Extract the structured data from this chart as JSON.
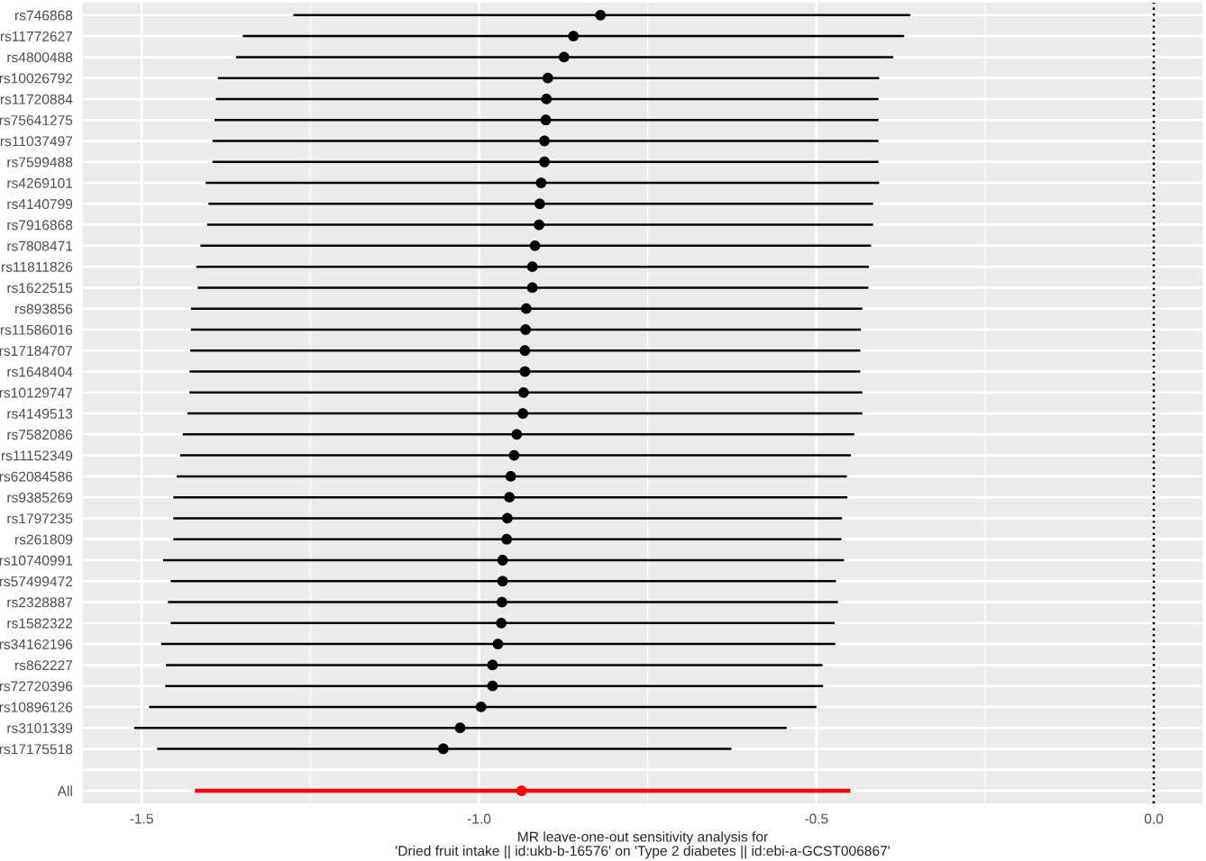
{
  "chart_data": {
    "type": "scatter",
    "orientation": "horizontal",
    "xlabel": "MR leave-one-out sensitivity analysis for\n'Dried fruit intake || id:ukb-b-16576' on 'Type 2 diabetes || id:ebi-a-GCST006867'",
    "categories": [
      "rs746868",
      "rs11772627",
      "rs4800488",
      "rs10026792",
      "rs11720884",
      "rs75641275",
      "rs11037497",
      "rs7599488",
      "rs4269101",
      "rs4140799",
      "rs7916868",
      "rs7808471",
      "rs11811826",
      "rs1622515",
      "rs893856",
      "rs11586016",
      "rs17184707",
      "rs1648404",
      "rs10129747",
      "rs4149513",
      "rs7582086",
      "rs11152349",
      "rs62084586",
      "rs9385269",
      "rs1797235",
      "rs261809",
      "rs10740991",
      "rs57499472",
      "rs2328887",
      "rs1582322",
      "rs34162196",
      "rs862227",
      "rs72720396",
      "rs10896126",
      "rs3101339",
      "rs17175518",
      null,
      "All"
    ],
    "series": [
      {
        "color": "#000000",
        "values": [
          -0.82,
          -0.86,
          -0.874,
          -0.898,
          -0.9,
          -0.901,
          -0.903,
          -0.903,
          -0.908,
          -0.91,
          -0.911,
          -0.917,
          -0.921,
          -0.921,
          -0.93,
          -0.931,
          -0.932,
          -0.932,
          -0.934,
          -0.935,
          -0.944,
          -0.948,
          -0.953,
          -0.955,
          -0.958,
          -0.959,
          -0.965,
          -0.965,
          -0.966,
          -0.967,
          -0.972,
          -0.98,
          -0.98,
          -0.997,
          -1.028,
          -1.053,
          null,
          null
        ],
        "errors": [
          [
            -1.275,
            -0.361
          ],
          [
            -1.35,
            -0.37
          ],
          [
            -1.36,
            -0.386
          ],
          [
            -1.387,
            -0.407
          ],
          [
            -1.39,
            -0.408
          ],
          [
            -1.392,
            -0.408
          ],
          [
            -1.395,
            -0.408
          ],
          [
            -1.395,
            -0.408
          ],
          [
            -1.405,
            -0.407
          ],
          [
            -1.401,
            -0.416
          ],
          [
            -1.403,
            -0.416
          ],
          [
            -1.413,
            -0.419
          ],
          [
            -1.419,
            -0.422
          ],
          [
            -1.417,
            -0.423
          ],
          [
            -1.427,
            -0.432
          ],
          [
            -1.427,
            -0.434
          ],
          [
            -1.428,
            -0.435
          ],
          [
            -1.429,
            -0.435
          ],
          [
            -1.429,
            -0.432
          ],
          [
            -1.432,
            -0.432
          ],
          [
            -1.439,
            -0.444
          ],
          [
            -1.443,
            -0.449
          ],
          [
            -1.448,
            -0.455
          ],
          [
            -1.453,
            -0.454
          ],
          [
            -1.453,
            -0.462
          ],
          [
            -1.453,
            -0.463
          ],
          [
            -1.468,
            -0.459
          ],
          [
            -1.457,
            -0.471
          ],
          [
            -1.461,
            -0.468
          ],
          [
            -1.457,
            -0.473
          ],
          [
            -1.471,
            -0.472
          ],
          [
            -1.464,
            -0.491
          ],
          [
            -1.465,
            -0.49
          ],
          [
            -1.489,
            -0.5
          ],
          [
            -1.511,
            -0.544
          ],
          [
            -1.477,
            -0.626
          ],
          null,
          null
        ]
      },
      {
        "color": "#ff0000",
        "values": [
          null,
          null,
          null,
          null,
          null,
          null,
          null,
          null,
          null,
          null,
          null,
          null,
          null,
          null,
          null,
          null,
          null,
          null,
          null,
          null,
          null,
          null,
          null,
          null,
          null,
          null,
          null,
          null,
          null,
          null,
          null,
          null,
          null,
          null,
          null,
          null,
          null,
          -0.937
        ],
        "errors": [
          null,
          null,
          null,
          null,
          null,
          null,
          null,
          null,
          null,
          null,
          null,
          null,
          null,
          null,
          null,
          null,
          null,
          null,
          null,
          null,
          null,
          null,
          null,
          null,
          null,
          null,
          null,
          null,
          null,
          null,
          null,
          null,
          null,
          null,
          null,
          null,
          null,
          [
            -1.421,
            -0.45
          ]
        ]
      }
    ],
    "xlim": [
      -1.587,
      0.072
    ],
    "xticks": [
      -1.5,
      {
        "value": -1.0,
        "label": "-1.0"
      },
      -0.5,
      {
        "value": 0.0,
        "label": "0.0"
      }
    ],
    "ref_lines": [
      {
        "axis": "x",
        "value": 0,
        "line_style": "dotted",
        "color": "#000000"
      }
    ],
    "grid": true,
    "marker": "circle"
  }
}
